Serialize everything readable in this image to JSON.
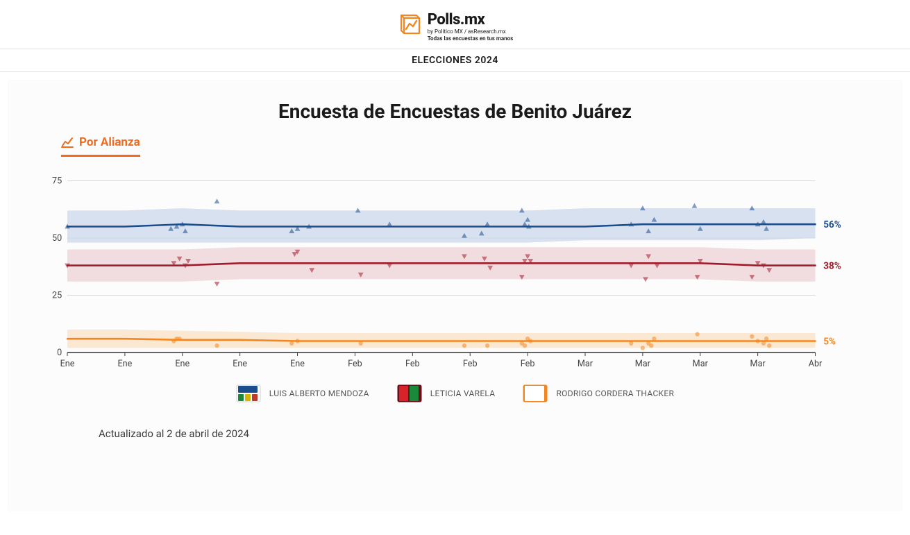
{
  "header": {
    "logo_title": "Polls.mx",
    "logo_byline": "by Politico MX / asResearch.mx",
    "logo_tagline": "Todas las encuestas en tus manos",
    "section": "ELECCIONES 2024"
  },
  "chart": {
    "title": "Encuesta de Encuestas de Benito Juárez",
    "tab_label": "Por Alianza",
    "type": "line-with-scatter-and-band",
    "ylim": [
      0,
      80
    ],
    "yticks": [
      0,
      25,
      50,
      75
    ],
    "xlabels": [
      "Ene",
      "Ene",
      "Ene",
      "Ene",
      "Ene",
      "Feb",
      "Feb",
      "Feb",
      "Feb",
      "Mar",
      "Mar",
      "Mar",
      "Mar",
      "Abr"
    ],
    "background_color": "#fcfcfc",
    "grid_color": "#d9d9d9",
    "axis_color": "#333333",
    "tick_font_size": 13,
    "series": [
      {
        "id": "mendoza",
        "name": "LUIS ALBERTO MENDOZA",
        "color": "#1b4c8c",
        "band_color": "#c9d6ea",
        "marker": "triangle-up",
        "end_label": "56%",
        "line": [
          55,
          55,
          56,
          55,
          55,
          55,
          55,
          55,
          55,
          55,
          56,
          56,
          56,
          56
        ],
        "band_lo": [
          48,
          48,
          48,
          48,
          48,
          48,
          48,
          48,
          48,
          49,
          49,
          49,
          49,
          50
        ],
        "band_hi": [
          62,
          62,
          63,
          62,
          62,
          62,
          62,
          62,
          62,
          63,
          63,
          63,
          63,
          63
        ],
        "points_x": [
          0.0,
          1.8,
          1.9,
          2.0,
          2.05,
          2.6,
          3.9,
          4.0,
          4.2,
          5.05,
          5.6,
          6.9,
          7.2,
          7.3,
          7.9,
          7.95,
          8.0,
          8.02,
          9.8,
          10.0,
          10.1,
          10.2,
          10.9,
          11.0,
          11.9,
          12.0,
          12.1,
          12.15
        ],
        "points_y": [
          55,
          54,
          55,
          56,
          53,
          66,
          53,
          54,
          55,
          62,
          56,
          51,
          52,
          56,
          62,
          56,
          58,
          55,
          56,
          63,
          53,
          58,
          64,
          54,
          63,
          56,
          57,
          54
        ]
      },
      {
        "id": "varela",
        "name": "LETICIA VARELA",
        "color": "#a01c2b",
        "band_color": "#eccfd3",
        "marker": "triangle-down",
        "end_label": "38%",
        "line": [
          38,
          38,
          38,
          39,
          39,
          39,
          39,
          39,
          39,
          39,
          39,
          39,
          38,
          38
        ],
        "band_lo": [
          31,
          31,
          31,
          32,
          32,
          32,
          32,
          32,
          32,
          32,
          32,
          32,
          31,
          31
        ],
        "band_hi": [
          45,
          45,
          45,
          46,
          46,
          46,
          46,
          46,
          46,
          46,
          46,
          46,
          45,
          45
        ],
        "points_x": [
          0.0,
          1.85,
          1.95,
          2.05,
          2.1,
          2.6,
          3.95,
          4.0,
          4.25,
          5.1,
          5.6,
          6.9,
          7.25,
          7.35,
          7.9,
          7.95,
          8.0,
          8.05,
          9.8,
          10.05,
          10.1,
          10.25,
          10.95,
          11.0,
          11.9,
          12.0,
          12.1,
          12.2
        ],
        "points_y": [
          38,
          39,
          41,
          38,
          40,
          30,
          43,
          44,
          36,
          34,
          38,
          42,
          41,
          37,
          33,
          40,
          42,
          40,
          38,
          32,
          42,
          38,
          33,
          40,
          33,
          39,
          38,
          36
        ]
      },
      {
        "id": "cordera",
        "name": "RODRIGO CORDERA THACKER",
        "color": "#f5861f",
        "band_color": "#fbe0c2",
        "marker": "circle",
        "end_label": "5%",
        "line": [
          6,
          6,
          5.5,
          5.5,
          5,
          5,
          5,
          5,
          5,
          5,
          5,
          5,
          5,
          5
        ],
        "band_lo": [
          2,
          2,
          2,
          2,
          2,
          2,
          2,
          2,
          2,
          2,
          2,
          2,
          2,
          2
        ],
        "band_hi": [
          10,
          10,
          9.5,
          9,
          8.5,
          8.5,
          8.5,
          8.5,
          8.5,
          8.5,
          8.5,
          8.5,
          8.5,
          8.5
        ],
        "points_x": [
          1.85,
          1.9,
          1.95,
          2.6,
          3.9,
          4.0,
          5.1,
          6.9,
          7.3,
          7.9,
          7.95,
          8.0,
          8.05,
          9.8,
          10.0,
          10.1,
          10.15,
          10.2,
          10.95,
          11.9,
          12.0,
          12.1,
          12.15,
          12.2
        ],
        "points_y": [
          5,
          6,
          6,
          3,
          4,
          5,
          4,
          3,
          3,
          4,
          3,
          6,
          5,
          4,
          2,
          4,
          3,
          6,
          8,
          7,
          5,
          4,
          6,
          3
        ]
      }
    ],
    "legend_swatches": {
      "mendoza": {
        "bg": "#ffffff",
        "border": "#d0d0d0",
        "badges": [
          [
            "#1b4c8c"
          ],
          [
            "#1a8a3a",
            "#d8b400",
            "#c0392b"
          ]
        ]
      },
      "varela": {
        "bg": "#6b0e1a",
        "border": "#6b0e1a",
        "badges": [
          [
            "#d8232a",
            "#1a8a3a"
          ]
        ]
      },
      "cordera": {
        "bg": "#f5861f",
        "border": "#f5861f",
        "badges": [
          [
            "#ffffff"
          ]
        ]
      }
    }
  },
  "footer": {
    "updated": "Actualizado al 2 de abril de 2024"
  }
}
